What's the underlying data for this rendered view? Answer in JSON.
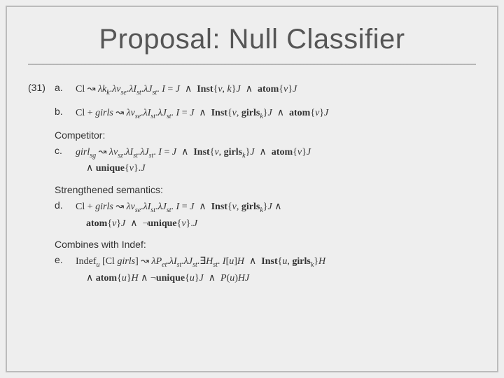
{
  "title": "Proposal: Null Classifier",
  "example_number": "(31)",
  "items": {
    "a": {
      "letter": "a.",
      "formula_html": "Cl ↝ <span class='it'>λk</span><span class='sub'>k</span>.<span class='it'>λv</span><span class='sub'>se</span>.<span class='it'>λI</span><span class='sub'>st</span>.<span class='it'>λJ</span><span class='sub'>st</span>. <span class='it'>I</span> = <span class='it'>J</span>&nbsp; ∧ &nbsp;<b>Inst</b>{<span class='it'>v</span>, <span class='it'>k</span>}<span class='it'>J</span>&nbsp; ∧ &nbsp;<b>atom</b>{<span class='it'>v</span>}<span class='it'>J</span>"
    },
    "b": {
      "letter": "b.",
      "formula_html": "Cl + <span class='it'>girls</span> ↝ <span class='it'>λv</span><span class='sub'>se</span>.<span class='it'>λI</span><span class='sub'>st</span>.<span class='it'>λJ</span><span class='sub'>st</span>. <span class='it'>I</span> = <span class='it'>J</span>&nbsp; ∧ &nbsp;<b>Inst</b>{<span class='it'>v</span>, <b>girls</b><span class='sub'>k</span>}<span class='it'>J</span>&nbsp; ∧ &nbsp;<b>atom</b>{<span class='it'>v</span>}<span class='it'>J</span>"
    },
    "c": {
      "letter": "c.",
      "label": "Competitor:",
      "formula_html": "<span class='it'>girl</span><span class='sub'>sg</span> ↝ <span class='it'>λv</span><span class='sub'>sz</span>.<span class='it'>λI</span><span class='sub'>st</span>.<span class='it'>λJ</span><span class='sub'>st</span>. <span class='it'>I</span> = <span class='it'>J</span>&nbsp; ∧ &nbsp;<b>Inst</b>{<span class='it'>v</span>, <b>girls</b><span class='sub'>k</span>}<span class='it'>J</span>&nbsp; ∧ &nbsp;<b>atom</b>{<span class='it'>v</span>}<span class='it'>J</span><span class='cont'>∧ <b>unique</b>{<span class='it'>v</span>}.<span class='it'>J</span></span>"
    },
    "d": {
      "letter": "d.",
      "label": "Strengthened semantics:",
      "formula_html": "Cl + <span class='it'>girls</span> ↝ <span class='it'>λv</span><span class='sub'>se</span>.<span class='it'>λI</span><span class='sub'>st</span>.<span class='it'>λJ</span><span class='sub'>st</span>. <span class='it'>I</span> = <span class='it'>J</span>&nbsp; ∧ &nbsp;<b>Inst</b>{<span class='it'>v</span>, <b>girls</b><span class='sub'>k</span>}<span class='it'>J</span> ∧<span class='cont'><b>atom</b>{<span class='it'>v</span>}<span class='it'>J</span>&nbsp; ∧ &nbsp;¬<b>unique</b>{<span class='it'>v</span>}.<span class='it'>J</span></span>"
    },
    "e": {
      "letter": "e.",
      "label": "Combines with Indef:",
      "formula_html": "Indef<span class='sub'>u</span> [Cl <span class='it'>girls</span>] ↝ <span class='it'>λP</span><span class='sub'>et</span>.<span class='it'>λI</span><span class='sub'>st</span>.<span class='it'>λJ</span><span class='sub'>st</span>.∃<span class='it'>H</span><span class='sub'>st</span>. <span class='it'>I</span>[<span class='it'>u</span>]<span class='it'>H</span>&nbsp; ∧ &nbsp;<b>Inst</b>{<span class='it'>u</span>, <b>girls</b><span class='sub'>k</span>}<span class='it'>H</span><span class='cont'>∧ <b>atom</b>{<span class='it'>u</span>}<span class='it'>H</span> ∧ ¬<b>unique</b>{<span class='it'>u</span>}<span class='it'>J</span>&nbsp; ∧ &nbsp;<span class='it'>P</span>(<span class='it'>u</span>)<span class='it'>HJ</span></span>"
    }
  }
}
